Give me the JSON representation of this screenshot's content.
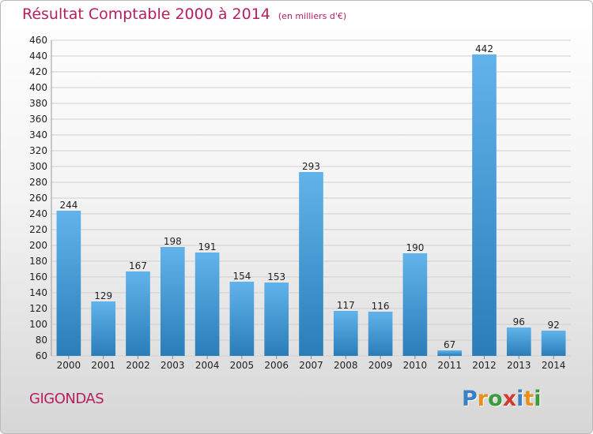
{
  "title": "Résultat Comptable 2000 à 2014",
  "subtitle": "(en milliers d'€)",
  "commune": "GIGONDAS",
  "logo": {
    "text": "Proxiti",
    "colors": [
      "#3b7fc4",
      "#e8901c",
      "#3b9a3b",
      "#d23a2e",
      "#3b7fc4",
      "#e8901c",
      "#3b9a3b"
    ]
  },
  "colors": {
    "accent": "#b5205e",
    "bar_light": "#62b3eb",
    "bar_dark": "#2a7db8"
  },
  "chart_data": {
    "type": "bar",
    "categories": [
      "2000",
      "2001",
      "2002",
      "2003",
      "2004",
      "2005",
      "2006",
      "2007",
      "2008",
      "2009",
      "2010",
      "2011",
      "2012",
      "2013",
      "2014"
    ],
    "values": [
      244,
      129,
      167,
      198,
      191,
      154,
      153,
      293,
      117,
      116,
      190,
      67,
      442,
      96,
      92
    ],
    "ylim": [
      60,
      460
    ],
    "ytick_step": 20,
    "grid": true,
    "xlabel": "",
    "ylabel": ""
  }
}
